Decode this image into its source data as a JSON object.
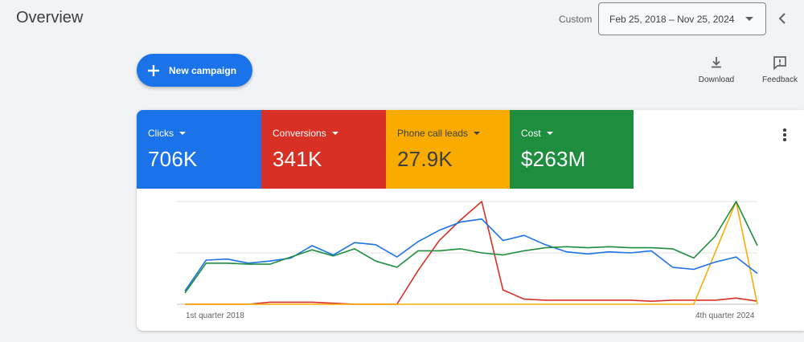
{
  "header": {
    "title": "Overview",
    "range_label": "Custom",
    "date_range": "Feb 25, 2018 – Nov 25, 2024"
  },
  "actions": {
    "new_campaign": "New campaign",
    "download": "Download",
    "feedback": "Feedback"
  },
  "metrics": [
    {
      "label": "Clicks",
      "value": "706K",
      "color": "#1a73e8"
    },
    {
      "label": "Conversions",
      "value": "341K",
      "color": "#d93025"
    },
    {
      "label": "Phone call leads",
      "value": "27.9K",
      "color": "#f9ab00"
    },
    {
      "label": "Cost",
      "value": "$263M",
      "color": "#1e8e3e"
    }
  ],
  "chart_data": {
    "type": "line",
    "x_start_label": "1st quarter 2018",
    "x_end_label": "4th quarter 2024",
    "grid": true,
    "series": [
      {
        "name": "Clicks",
        "color": "#1a73e8",
        "values": [
          0.13,
          0.43,
          0.44,
          0.4,
          0.42,
          0.45,
          0.57,
          0.48,
          0.6,
          0.58,
          0.46,
          0.61,
          0.72,
          0.8,
          0.83,
          0.62,
          0.67,
          0.58,
          0.51,
          0.49,
          0.51,
          0.5,
          0.52,
          0.36,
          0.34,
          0.41,
          0.46,
          0.3
        ]
      },
      {
        "name": "Conversions",
        "color": "#d93025",
        "values": [
          0.0,
          0.0,
          0.0,
          0.0,
          0.02,
          0.02,
          0.02,
          0.01,
          0.0,
          0.0,
          0.0,
          0.33,
          0.62,
          0.82,
          1.0,
          0.14,
          0.05,
          0.04,
          0.04,
          0.04,
          0.04,
          0.04,
          0.03,
          0.04,
          0.04,
          0.04,
          0.06,
          0.03
        ]
      },
      {
        "name": "Phone call leads",
        "color": "#f9ab00",
        "values": [
          0.0,
          0.0,
          0.0,
          0.0,
          0.0,
          0.0,
          0.0,
          0.0,
          0.0,
          0.0,
          0.0,
          0.0,
          0.0,
          0.0,
          0.0,
          0.0,
          0.0,
          0.0,
          0.0,
          0.0,
          0.0,
          0.0,
          0.0,
          0.0,
          0.0,
          0.5,
          1.0,
          0.0
        ]
      },
      {
        "name": "Cost",
        "color": "#1e8e3e",
        "values": [
          0.11,
          0.4,
          0.4,
          0.39,
          0.39,
          0.46,
          0.53,
          0.47,
          0.54,
          0.42,
          0.36,
          0.52,
          0.52,
          0.54,
          0.5,
          0.48,
          0.52,
          0.55,
          0.56,
          0.55,
          0.56,
          0.55,
          0.55,
          0.54,
          0.45,
          0.66,
          1.0,
          0.57
        ]
      }
    ]
  }
}
